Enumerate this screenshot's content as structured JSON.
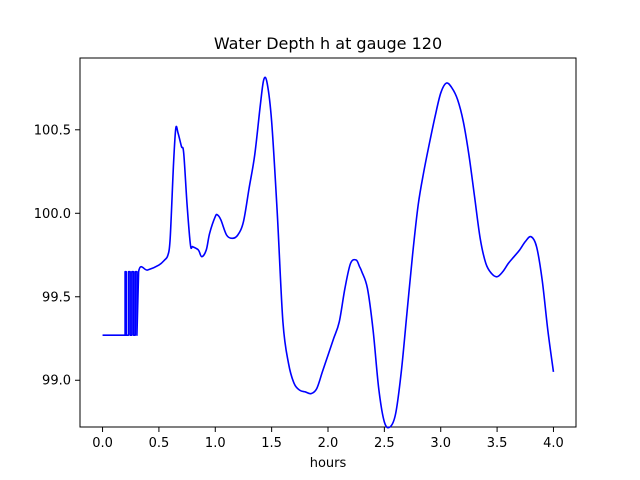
{
  "chart_data": {
    "type": "line",
    "title": "Water Depth h at gauge 120",
    "xlabel": "hours",
    "ylabel": "",
    "xlim": [
      -0.2,
      4.2
    ],
    "ylim": [
      98.72,
      100.93
    ],
    "xticks": [
      0.0,
      0.5,
      1.0,
      1.5,
      2.0,
      2.5,
      3.0,
      3.5,
      4.0
    ],
    "xtick_labels": [
      "0.0",
      "0.5",
      "1.0",
      "1.5",
      "2.0",
      "2.5",
      "3.0",
      "3.5",
      "4.0"
    ],
    "yticks": [
      99.0,
      99.5,
      100.0,
      100.5
    ],
    "ytick_labels": [
      "99.0",
      "99.5",
      "100.0",
      "100.5"
    ],
    "grid": false,
    "series": [
      {
        "color": "#0000ff",
        "x": [
          0.0,
          0.2,
          0.2,
          0.21,
          0.21,
          0.23,
          0.23,
          0.245,
          0.245,
          0.26,
          0.26,
          0.275,
          0.275,
          0.29,
          0.29,
          0.305,
          0.305,
          0.32,
          0.4,
          0.5,
          0.55,
          0.58,
          0.6,
          0.63,
          0.65,
          0.67,
          0.7,
          0.72,
          0.75,
          0.78,
          0.8,
          0.85,
          0.88,
          0.92,
          0.95,
          1.0,
          1.02,
          1.05,
          1.1,
          1.15,
          1.2,
          1.25,
          1.3,
          1.35,
          1.4,
          1.43,
          1.46,
          1.5,
          1.55,
          1.6,
          1.65,
          1.7,
          1.75,
          1.8,
          1.85,
          1.9,
          1.95,
          2.0,
          2.05,
          2.1,
          2.15,
          2.2,
          2.25,
          2.28,
          2.3,
          2.35,
          2.4,
          2.45,
          2.5,
          2.55,
          2.6,
          2.65,
          2.7,
          2.75,
          2.8,
          2.85,
          2.9,
          2.95,
          3.0,
          3.05,
          3.1,
          3.15,
          3.2,
          3.25,
          3.3,
          3.35,
          3.4,
          3.45,
          3.5,
          3.55,
          3.6,
          3.65,
          3.7,
          3.75,
          3.8,
          3.85,
          3.9,
          3.95,
          4.0
        ],
        "y": [
          99.27,
          99.27,
          99.65,
          99.65,
          99.27,
          99.27,
          99.65,
          99.65,
          99.27,
          99.27,
          99.65,
          99.65,
          99.27,
          99.27,
          99.65,
          99.65,
          99.27,
          99.65,
          99.66,
          99.69,
          99.72,
          99.75,
          99.85,
          100.3,
          100.51,
          100.48,
          100.4,
          100.36,
          100.05,
          99.81,
          99.8,
          99.78,
          99.74,
          99.78,
          99.88,
          99.98,
          99.99,
          99.96,
          99.87,
          99.85,
          99.87,
          99.95,
          100.15,
          100.35,
          100.65,
          100.8,
          100.78,
          100.55,
          100.0,
          99.35,
          99.1,
          98.98,
          98.94,
          98.93,
          98.92,
          98.95,
          99.05,
          99.15,
          99.25,
          99.35,
          99.55,
          99.7,
          99.72,
          99.68,
          99.65,
          99.55,
          99.3,
          98.95,
          98.75,
          98.72,
          98.8,
          99.05,
          99.4,
          99.75,
          100.05,
          100.25,
          100.42,
          100.58,
          100.72,
          100.78,
          100.75,
          100.68,
          100.55,
          100.35,
          100.1,
          99.85,
          99.7,
          99.64,
          99.62,
          99.65,
          99.7,
          99.74,
          99.78,
          99.83,
          99.86,
          99.8,
          99.6,
          99.3,
          99.05
        ]
      }
    ]
  }
}
